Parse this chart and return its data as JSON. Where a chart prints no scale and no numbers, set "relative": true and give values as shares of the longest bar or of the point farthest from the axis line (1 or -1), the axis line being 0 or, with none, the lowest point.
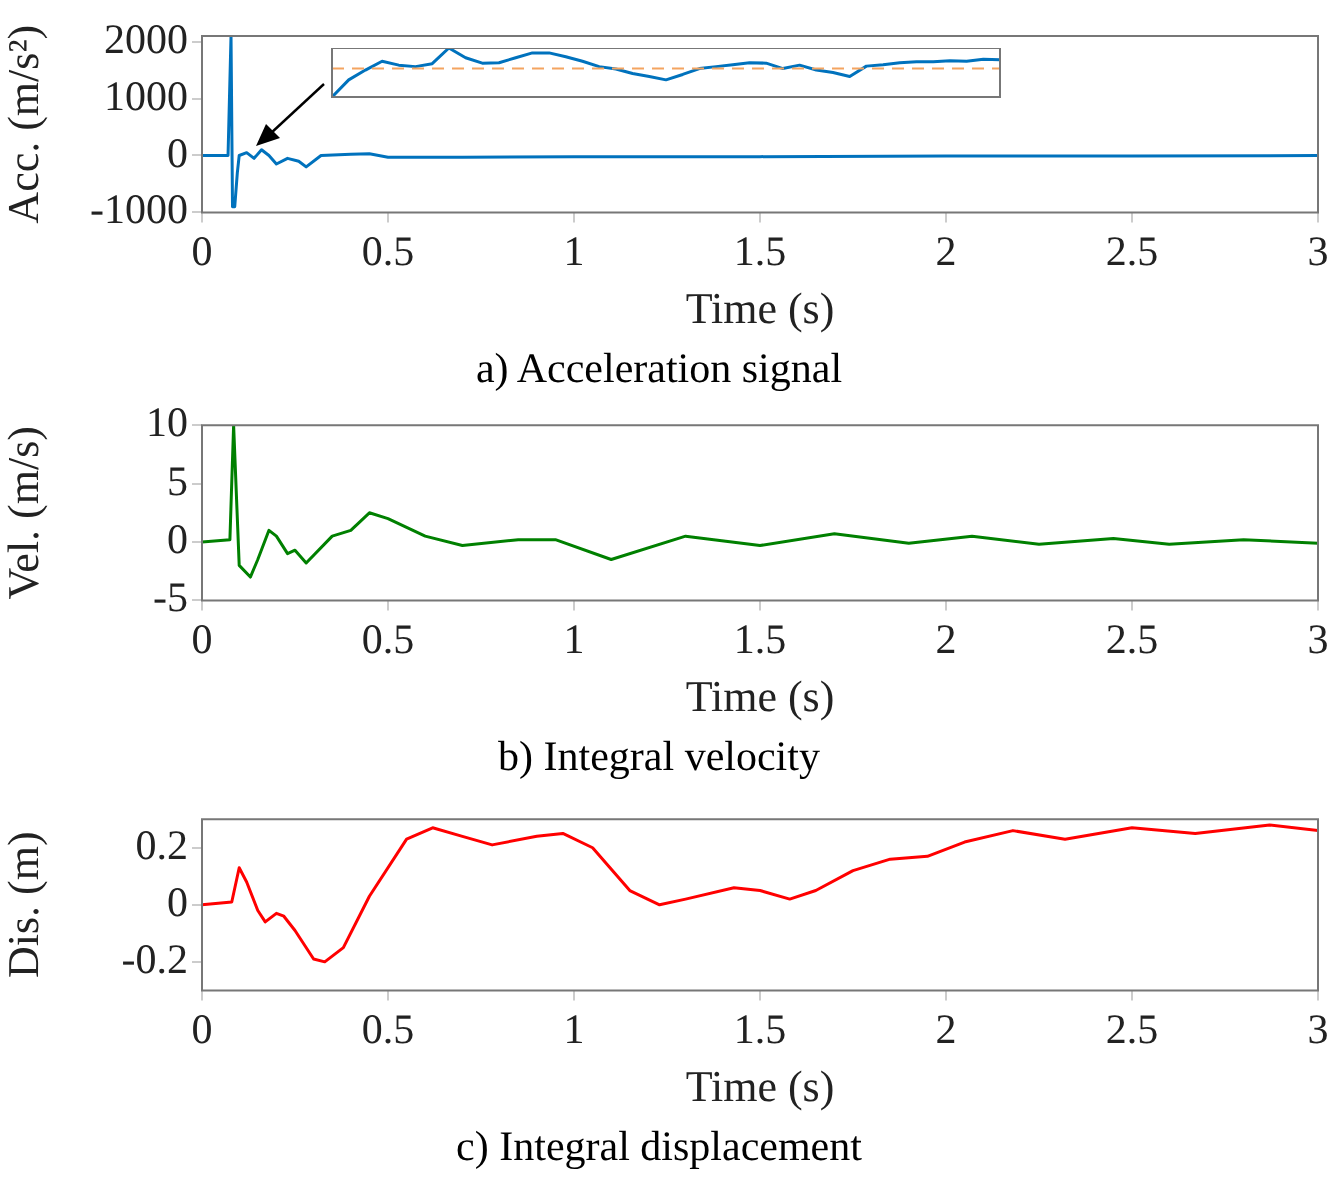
{
  "chart_data": [
    {
      "type": "line",
      "title": "a) Acceleration signal",
      "xlabel": "Time (s)",
      "ylabel": "Acc. (m/s²)",
      "xlim": [
        0,
        3
      ],
      "xticks": [
        0,
        0.5,
        1,
        1.5,
        2,
        2.5,
        3
      ],
      "ylim": [
        -1000,
        2100
      ],
      "yticks": [
        -1000,
        0,
        1000,
        2000
      ],
      "marker": "none",
      "legend": false,
      "series": [
        {
          "color": "#0072bd",
          "x": [
            0,
            0.07,
            0.078,
            0.082,
            0.088,
            0.095,
            0.1,
            0.12,
            0.14,
            0.16,
            0.18,
            0.2,
            0.23,
            0.26,
            0.28,
            0.32,
            0.4,
            0.45,
            0.5,
            0.7,
            1,
            1.5,
            2,
            2.5,
            3
          ],
          "values": [
            0,
            0,
            2100,
            -900,
            -900,
            -300,
            0,
            50,
            -50,
            100,
            0,
            -150,
            -50,
            -100,
            -200,
            0,
            20,
            30,
            -30,
            -30,
            -20,
            -20,
            -10,
            -10,
            0
          ]
        }
      ]
    },
    {
      "type": "line",
      "relative": true,
      "categories": [
        null,
        null,
        null,
        null,
        null,
        null,
        null,
        null,
        null,
        null,
        null,
        null,
        null,
        null,
        null,
        null,
        null,
        null,
        null,
        null,
        null,
        null,
        null,
        null,
        null,
        null,
        null,
        null,
        null,
        null,
        null,
        null,
        null,
        null,
        null,
        null,
        null,
        null,
        null,
        null,
        null
      ],
      "marker": "none",
      "legend": false,
      "series": [
        {
          "color": "#0072bd",
          "values": [
            0,
            0.35,
            0.55,
            0.73,
            0.65,
            0.62,
            0.68,
            1,
            0.8,
            0.69,
            0.7,
            0.8,
            0.9,
            0.9,
            0.82,
            0.73,
            0.62,
            0.57,
            0.48,
            0.42,
            0.35,
            0.46,
            0.58,
            0.62,
            0.66,
            0.7,
            0.69,
            0.58,
            0.65,
            0.55,
            0.5,
            0.42,
            0.63,
            0.66,
            0.7,
            0.72,
            0.72,
            0.74,
            0.73,
            0.77,
            0.76
          ]
        }
      ],
      "ref_lines": [
        {
          "axis": "y",
          "value": 0.58,
          "color": "#f4a460",
          "line_style": "dashed"
        }
      ]
    },
    {
      "type": "line",
      "title": "b) Integral velocity",
      "xlabel": "Time (s)",
      "ylabel": "Vel. (m/s)",
      "xlim": [
        0,
        3
      ],
      "xticks": [
        0,
        0.5,
        1,
        1.5,
        2,
        2.5,
        3
      ],
      "ylim": [
        -5,
        10
      ],
      "yticks": [
        -5,
        0,
        5,
        10
      ],
      "marker": "none",
      "legend": false,
      "series": [
        {
          "color": "#008000",
          "x": [
            0,
            0.075,
            0.085,
            0.1,
            0.13,
            0.15,
            0.18,
            0.2,
            0.23,
            0.25,
            0.28,
            0.35,
            0.4,
            0.45,
            0.5,
            0.6,
            0.7,
            0.85,
            0.95,
            1.1,
            1.3,
            1.5,
            1.7,
            1.9,
            2.07,
            2.25,
            2.45,
            2.6,
            2.8,
            3
          ],
          "values": [
            0,
            0.2,
            10,
            -2,
            -3,
            -1.5,
            1,
            0.5,
            -1,
            -0.7,
            -1.8,
            0.5,
            1,
            2.5,
            2,
            0.5,
            -0.3,
            0.2,
            0.2,
            -1.5,
            0.5,
            -0.3,
            0.7,
            -0.1,
            0.5,
            -0.2,
            0.3,
            -0.2,
            0.2,
            -0.1
          ]
        }
      ]
    },
    {
      "type": "line",
      "title": "c) Integral displacement",
      "xlabel": "Time (s)",
      "ylabel": "Dis. (m)",
      "xlim": [
        0,
        3
      ],
      "xticks": [
        0,
        0.5,
        1,
        1.5,
        2,
        2.5,
        3
      ],
      "ylim": [
        -0.3,
        0.3
      ],
      "yticks": [
        -0.2,
        0,
        0.2
      ],
      "marker": "none",
      "legend": false,
      "series": [
        {
          "color": "#ff0000",
          "x": [
            0,
            0.08,
            0.1,
            0.12,
            0.15,
            0.17,
            0.2,
            0.22,
            0.25,
            0.3,
            0.33,
            0.38,
            0.45,
            0.55,
            0.62,
            0.7,
            0.78,
            0.9,
            0.97,
            1.05,
            1.15,
            1.23,
            1.3,
            1.43,
            1.5,
            1.58,
            1.65,
            1.75,
            1.85,
            1.95,
            2.05,
            2.18,
            2.32,
            2.5,
            2.67,
            2.87,
            3
          ],
          "values": [
            0,
            0.01,
            0.13,
            0.08,
            -0.02,
            -0.06,
            -0.03,
            -0.04,
            -0.09,
            -0.19,
            -0.2,
            -0.15,
            0.03,
            0.23,
            0.27,
            0.24,
            0.21,
            0.24,
            0.25,
            0.2,
            0.05,
            0,
            0.02,
            0.06,
            0.05,
            0.02,
            0.05,
            0.12,
            0.16,
            0.17,
            0.22,
            0.26,
            0.23,
            0.27,
            0.25,
            0.28,
            0.26
          ]
        }
      ]
    }
  ]
}
